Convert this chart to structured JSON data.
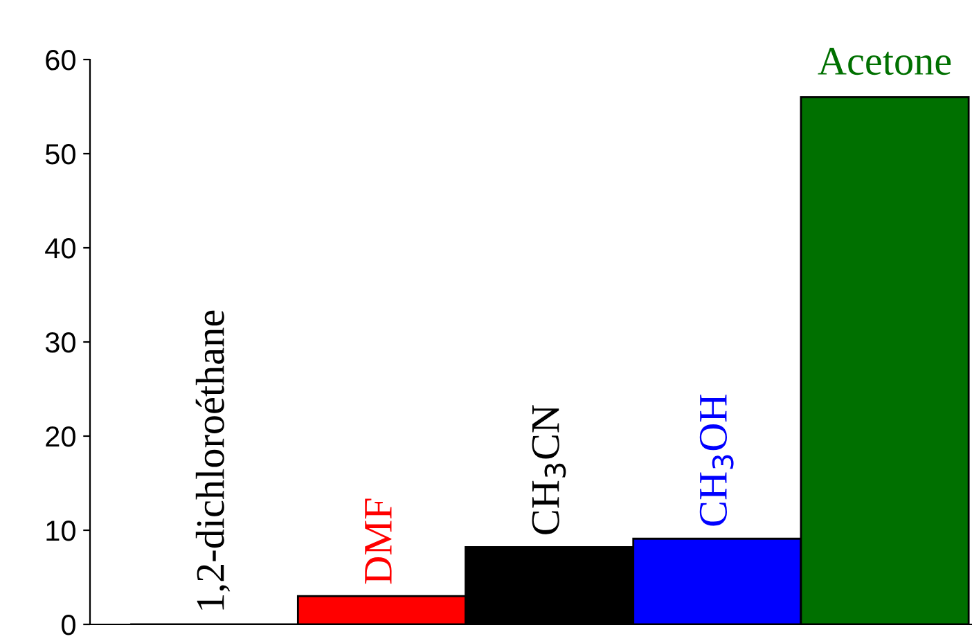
{
  "chart_data": {
    "type": "bar",
    "categories": [
      "1,2-dichloroéthane",
      "DMF",
      "CH$_{3}$CN",
      "CH$_{3}$OH",
      "Acetone"
    ],
    "values": [
      0,
      3,
      8.2,
      9.1,
      56
    ],
    "colors": [
      "#000000",
      "#ff0000",
      "#000000",
      "#0000ff",
      "#007000"
    ],
    "ylim": [
      0,
      60
    ],
    "yticks": [
      0,
      10,
      20,
      30,
      40,
      50,
      60
    ],
    "grid": false
  }
}
